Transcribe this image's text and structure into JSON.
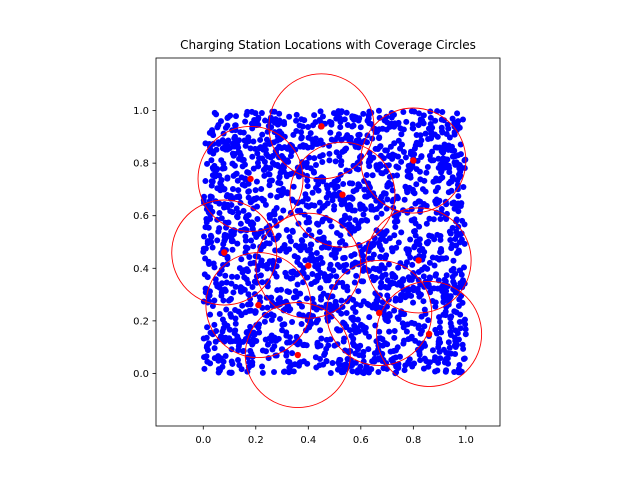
{
  "chart_data": {
    "type": "scatter",
    "title": "Charging Station Locations with Coverage Circles",
    "xlabel": "",
    "ylabel": "",
    "xlim": [
      -0.18,
      1.13
    ],
    "ylim": [
      -0.2,
      1.2
    ],
    "x_ticks": [
      0.0,
      0.2,
      0.4,
      0.6,
      0.8,
      1.0
    ],
    "y_ticks": [
      0.0,
      0.2,
      0.4,
      0.6,
      0.8,
      1.0
    ],
    "x_tick_labels": [
      "0.0",
      "0.2",
      "0.4",
      "0.6",
      "0.8",
      "1.0"
    ],
    "y_tick_labels": [
      "0.0",
      "0.2",
      "0.4",
      "0.6",
      "0.8",
      "1.0"
    ],
    "grid": false,
    "aspect": "equal",
    "demand_points": {
      "color": "#0000ff",
      "count": 2000,
      "x_range": [
        0.0,
        1.0
      ],
      "y_range": [
        0.0,
        1.0
      ],
      "distribution": "uniform"
    },
    "stations": {
      "color": "#ff0000",
      "coverage_radius": 0.2,
      "points": [
        {
          "x": 0.45,
          "y": 0.94
        },
        {
          "x": 0.18,
          "y": 0.74
        },
        {
          "x": 0.8,
          "y": 0.81
        },
        {
          "x": 0.53,
          "y": 0.68
        },
        {
          "x": 0.08,
          "y": 0.46
        },
        {
          "x": 0.4,
          "y": 0.41
        },
        {
          "x": 0.82,
          "y": 0.43
        },
        {
          "x": 0.21,
          "y": 0.26
        },
        {
          "x": 0.67,
          "y": 0.23
        },
        {
          "x": 0.86,
          "y": 0.15
        },
        {
          "x": 0.36,
          "y": 0.07
        }
      ]
    }
  },
  "colors": {
    "background": "#ffffff",
    "axes": "#000000",
    "demand": "#0000ff",
    "station": "#ff0000"
  }
}
